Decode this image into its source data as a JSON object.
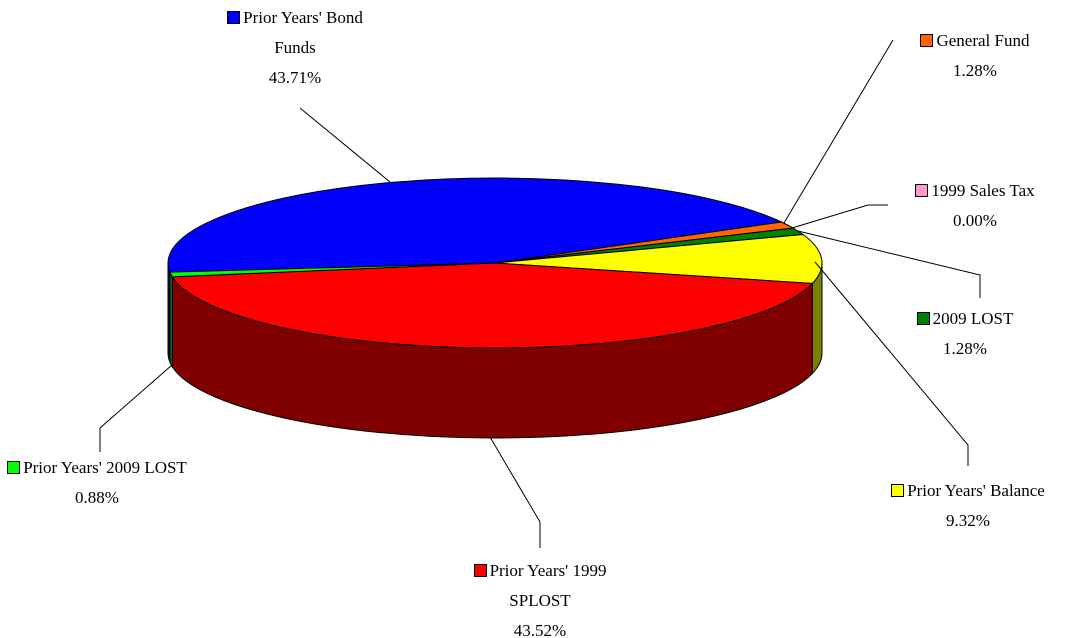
{
  "chart_data": {
    "type": "pie",
    "categories": [
      "Prior Years' Bond Funds",
      "General Fund",
      "1999 Sales Tax",
      "2009 LOST",
      "Prior Years' Balance",
      "Prior Years' 1999 SPLOST",
      "Prior Years' 2009 LOST"
    ],
    "values": [
      43.71,
      1.28,
      0,
      1.28,
      9.32,
      43.52,
      0.88
    ],
    "value_labels": [
      "43.71%",
      "1.28%",
      "0.00%",
      "1.28%",
      "9.32%",
      "43.52%",
      "0.88%"
    ],
    "colors": [
      "#0000ff",
      "#ff6600",
      "#ff99cc",
      "#008000",
      "#ffff00",
      "#ff0000",
      "#00ff00"
    ]
  }
}
